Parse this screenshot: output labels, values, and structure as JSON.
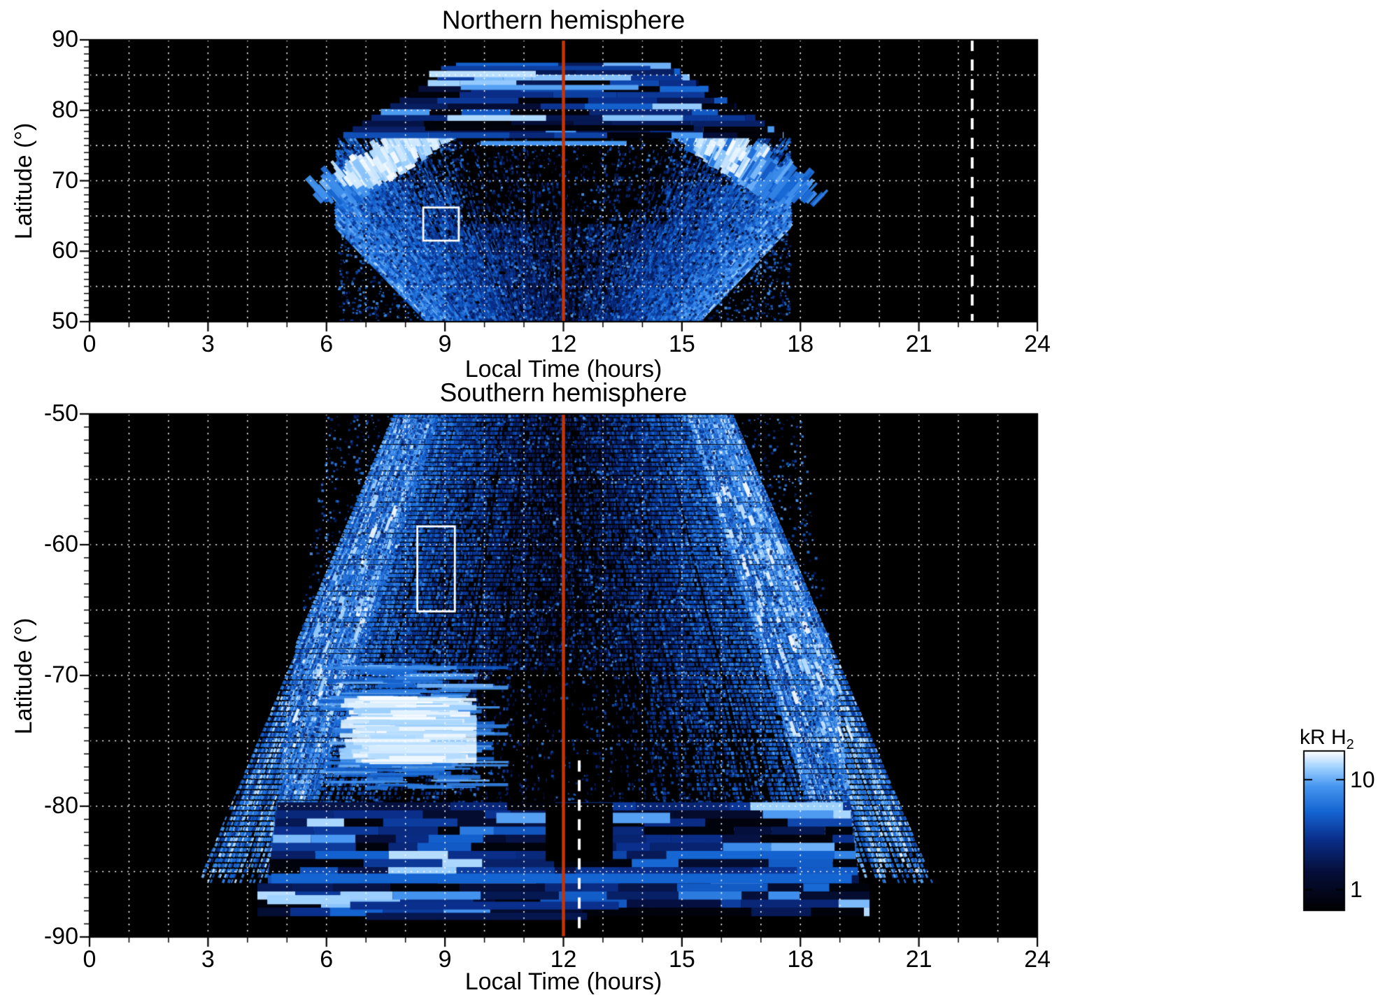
{
  "figure": {
    "background": "#ffffff",
    "palette": {
      "data_background": "#000000",
      "meridian_line": "#cc3300",
      "grid": "#ffffff",
      "frame": "#000000",
      "colormap_stops": [
        {
          "v": 0.0,
          "c": "#000000"
        },
        {
          "v": 0.25,
          "c": "#050f3c"
        },
        {
          "v": 0.45,
          "c": "#0a2f8c"
        },
        {
          "v": 0.62,
          "c": "#1464d2"
        },
        {
          "v": 0.78,
          "c": "#4696f0"
        },
        {
          "v": 0.9,
          "c": "#a0d2ff"
        },
        {
          "v": 1.0,
          "c": "#ffffff"
        }
      ]
    }
  },
  "chart_data": {
    "type": "heatmap",
    "panels": [
      {
        "id": "north",
        "title": "Northern hemisphere",
        "xlabel": "Local Time (hours)",
        "ylabel": "Latitude (°)",
        "xlim": [
          0,
          24
        ],
        "ylim": [
          50,
          90
        ],
        "x_ticks": [
          0,
          3,
          6,
          9,
          12,
          15,
          18,
          21,
          24
        ],
        "y_ticks": [
          90,
          80,
          70,
          60,
          50
        ],
        "x_minor_tick_interval": 1,
        "y_minor_tick_interval": 1,
        "grid": {
          "vertical_every_hours": 1,
          "horizontal_every_degrees": 5,
          "style": "dotted",
          "color": "#ffffff"
        },
        "data_extent": {
          "local_time": [
            6.3,
            17.9
          ],
          "latitude": [
            50,
            86.3
          ]
        },
        "annotations": {
          "meridian_line": {
            "x": 12,
            "style": "solid",
            "color": "#cc3300"
          },
          "dashed_line": {
            "x": 22.35,
            "style": "dashed",
            "color": "#ffffff",
            "lat_range": [
              50,
              90
            ]
          },
          "highlight_box": {
            "local_time": [
              8.45,
              9.35
            ],
            "latitude": [
              61.5,
              66.2
            ],
            "color": "#ffffff"
          }
        },
        "features": [
          "speckled H2 emission fan between ~6.5 h and ~17.5 h local time, 50-76 deg",
          "bright dawn-side arc near 7-9 h, 69-76 deg latitude (whites)",
          "bright dusk-side arc near 15-17 h, 69-76 deg latitude (whites)",
          "horizontally banded emission 76-86 deg latitude, narrowing toward the pole",
          "dark low-emission sector near 10.5-13.5 h, 64-76 deg latitude"
        ]
      },
      {
        "id": "south",
        "title": "Southern hemisphere",
        "xlabel": "Local Time (hours)",
        "ylabel": "Latitude (°)",
        "xlim": [
          0,
          24
        ],
        "ylim": [
          -90,
          -50
        ],
        "x_ticks": [
          0,
          3,
          6,
          9,
          12,
          15,
          18,
          21,
          24
        ],
        "y_ticks": [
          -50,
          -60,
          -70,
          -80,
          -90
        ],
        "x_minor_tick_interval": 1,
        "y_minor_tick_interval": 1,
        "grid": {
          "vertical_every_hours": 1,
          "horizontal_every_degrees": 5,
          "style": "dotted",
          "color": "#ffffff"
        },
        "data_extent": {
          "local_time": [
            4.5,
            19.6
          ],
          "latitude": [
            -88.8,
            -50
          ]
        },
        "annotations": {
          "meridian_line": {
            "x": 12,
            "style": "solid",
            "color": "#cc3300"
          },
          "dashed_line": {
            "x": 12.4,
            "style": "dashed",
            "color": "#ffffff",
            "lat_range": [
              -90,
              -76.5
            ]
          },
          "highlight_box": {
            "local_time": [
              8.3,
              9.25
            ],
            "latitude": [
              -65.1,
              -58.6
            ],
            "color": "#ffffff"
          }
        },
        "features": [
          "speckled H2 emission fan between ~6 h and ~18 h at the top edge, widening toward the pole",
          "bright white emission patch near 6.5-9.5 h, -72 to -76.5 deg",
          "coherent dawn-side curtain of streaks near 5-7 h, -50 to -85 deg",
          "coherent dusk-side curtain of streaks near 17-19 h, -50 to -85 deg",
          "horizontally banded emission -80 to -88 deg spanning ~4.5-19.5 h",
          "dark low-emission notch near 11.5-13.5 h, -70 to -84 deg"
        ]
      }
    ],
    "colorbar": {
      "label_main": "kR H",
      "label_sub": "2",
      "orientation": "vertical",
      "scale": "log",
      "ticks": [
        {
          "label": "10",
          "fraction_from_top": 0.18
        },
        {
          "label": "1",
          "fraction_from_top": 0.87
        }
      ]
    }
  }
}
